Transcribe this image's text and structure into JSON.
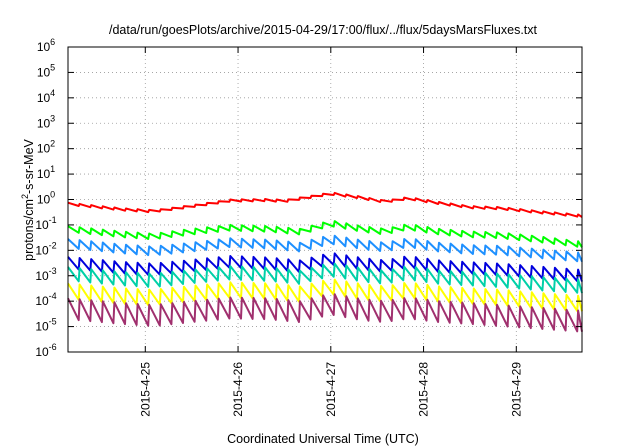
{
  "chart_data": {
    "type": "line",
    "title": "/data/run/goesPlots/archive/2015-04-29/17:00/flux/../flux/5daysMarsFluxes.txt",
    "xlabel": "Coordinated Universal Time (UTC)",
    "ylabel": "protons/cm2-s-sr-MeV",
    "ylabel_parts": {
      "pre": "protons/cm",
      "sup": "2",
      "post": "-s-sr-MeV"
    },
    "y_scale": "log",
    "ylim": [
      1e-06,
      1000000.0
    ],
    "y_ticks": [
      {
        "value": 1e-06,
        "base": "10",
        "exp": "-6"
      },
      {
        "value": 1e-05,
        "base": "10",
        "exp": "-5"
      },
      {
        "value": 0.0001,
        "base": "10",
        "exp": "-4"
      },
      {
        "value": 0.001,
        "base": "10",
        "exp": "-3"
      },
      {
        "value": 0.01,
        "base": "10",
        "exp": "-2"
      },
      {
        "value": 0.1,
        "base": "10",
        "exp": "-1"
      },
      {
        "value": 1.0,
        "base": "10",
        "exp": "0"
      },
      {
        "value": 10.0,
        "base": "10",
        "exp": "1"
      },
      {
        "value": 100.0,
        "base": "10",
        "exp": "2"
      },
      {
        "value": 1000.0,
        "base": "10",
        "exp": "3"
      },
      {
        "value": 10000.0,
        "base": "10",
        "exp": "4"
      },
      {
        "value": 100000.0,
        "base": "10",
        "exp": "5"
      },
      {
        "value": 1000000.0,
        "base": "10",
        "exp": "6"
      }
    ],
    "xlim": [
      "2015-04-24T04:00",
      "2015-04-29T17:00"
    ],
    "x_ticks": [
      "2015-4-25",
      "2015-4-26",
      "2015-4-27",
      "2015-4-28",
      "2015-4-29"
    ],
    "grid": true,
    "sawtooth_period_hours": 3,
    "series": [
      {
        "color": "#ff0000",
        "lo_factor": 0.82,
        "points": [
          [
            "2015-04-24T04:00",
            0.75
          ],
          [
            "2015-04-24T18:00",
            0.45
          ],
          [
            "2015-04-25T02:00",
            0.38
          ],
          [
            "2015-04-25T12:00",
            0.6
          ],
          [
            "2015-04-25T22:00",
            1.0
          ],
          [
            "2015-04-26T08:00",
            1.05
          ],
          [
            "2015-04-26T12:00",
            0.95
          ],
          [
            "2015-04-26T20:00",
            1.5
          ],
          [
            "2015-04-27T00:00",
            1.9
          ],
          [
            "2015-04-27T08:00",
            1.3
          ],
          [
            "2015-04-27T14:00",
            0.9
          ],
          [
            "2015-04-27T20:00",
            1.25
          ],
          [
            "2015-04-28T04:00",
            0.8
          ],
          [
            "2015-04-28T12:00",
            0.55
          ],
          [
            "2015-04-28T20:00",
            0.5
          ],
          [
            "2015-04-29T06:00",
            0.35
          ],
          [
            "2015-04-29T17:00",
            0.25
          ]
        ]
      },
      {
        "color": "#00ff00",
        "lo_factor": 0.6,
        "points": [
          [
            "2015-04-24T04:00",
            0.09
          ],
          [
            "2015-04-24T18:00",
            0.055
          ],
          [
            "2015-04-25T02:00",
            0.045
          ],
          [
            "2015-04-25T12:00",
            0.07
          ],
          [
            "2015-04-25T22:00",
            0.1
          ],
          [
            "2015-04-26T08:00",
            0.09
          ],
          [
            "2015-04-26T16:00",
            0.07
          ],
          [
            "2015-04-27T00:00",
            0.15
          ],
          [
            "2015-04-27T08:00",
            0.09
          ],
          [
            "2015-04-27T14:00",
            0.07
          ],
          [
            "2015-04-27T20:00",
            0.11
          ],
          [
            "2015-04-28T04:00",
            0.07
          ],
          [
            "2015-04-28T12:00",
            0.055
          ],
          [
            "2015-04-28T20:00",
            0.05
          ],
          [
            "2015-04-29T06:00",
            0.035
          ],
          [
            "2015-04-29T17:00",
            0.022
          ]
        ]
      },
      {
        "color": "#1e90ff",
        "lo_factor": 0.45,
        "points": [
          [
            "2015-04-24T04:00",
            0.028
          ],
          [
            "2015-04-24T18:00",
            0.017
          ],
          [
            "2015-04-25T02:00",
            0.014
          ],
          [
            "2015-04-25T12:00",
            0.02
          ],
          [
            "2015-04-25T22:00",
            0.03
          ],
          [
            "2015-04-26T08:00",
            0.026
          ],
          [
            "2015-04-26T16:00",
            0.02
          ],
          [
            "2015-04-27T00:00",
            0.04
          ],
          [
            "2015-04-27T08:00",
            0.025
          ],
          [
            "2015-04-27T14:00",
            0.02
          ],
          [
            "2015-04-27T20:00",
            0.03
          ],
          [
            "2015-04-28T04:00",
            0.02
          ],
          [
            "2015-04-28T12:00",
            0.016
          ],
          [
            "2015-04-28T20:00",
            0.015
          ],
          [
            "2015-04-29T06:00",
            0.011
          ],
          [
            "2015-04-29T17:00",
            0.008
          ]
        ]
      },
      {
        "color": "#0000dd",
        "lo_factor": 0.35,
        "points": [
          [
            "2015-04-24T04:00",
            0.0055
          ],
          [
            "2015-04-24T18:00",
            0.0035
          ],
          [
            "2015-04-25T02:00",
            0.003
          ],
          [
            "2015-04-25T12:00",
            0.0042
          ],
          [
            "2015-04-25T22:00",
            0.006
          ],
          [
            "2015-04-26T08:00",
            0.0052
          ],
          [
            "2015-04-26T16:00",
            0.004
          ],
          [
            "2015-04-27T00:00",
            0.008
          ],
          [
            "2015-04-27T08:00",
            0.005
          ],
          [
            "2015-04-27T14:00",
            0.004
          ],
          [
            "2015-04-27T20:00",
            0.006
          ],
          [
            "2015-04-28T04:00",
            0.004
          ],
          [
            "2015-04-28T12:00",
            0.0034
          ],
          [
            "2015-04-28T20:00",
            0.003
          ],
          [
            "2015-04-29T06:00",
            0.0023
          ],
          [
            "2015-04-29T17:00",
            0.0017
          ]
        ]
      },
      {
        "color": "#00d0a8",
        "lo_factor": 0.3,
        "points": [
          [
            "2015-04-24T04:00",
            0.0022
          ],
          [
            "2015-04-24T18:00",
            0.0014
          ],
          [
            "2015-04-25T02:00",
            0.0012
          ],
          [
            "2015-04-25T12:00",
            0.0017
          ],
          [
            "2015-04-25T22:00",
            0.0024
          ],
          [
            "2015-04-26T08:00",
            0.0021
          ],
          [
            "2015-04-26T16:00",
            0.0016
          ],
          [
            "2015-04-27T00:00",
            0.0032
          ],
          [
            "2015-04-27T08:00",
            0.002
          ],
          [
            "2015-04-27T14:00",
            0.0016
          ],
          [
            "2015-04-27T20:00",
            0.0024
          ],
          [
            "2015-04-28T04:00",
            0.0016
          ],
          [
            "2015-04-28T12:00",
            0.0014
          ],
          [
            "2015-04-28T20:00",
            0.0012
          ],
          [
            "2015-04-29T06:00",
            0.0009
          ],
          [
            "2015-04-29T17:00",
            0.0007
          ]
        ]
      },
      {
        "color": "#ffff00",
        "lo_factor": 0.25,
        "points": [
          [
            "2015-04-24T04:00",
            0.0005
          ],
          [
            "2015-04-24T18:00",
            0.00032
          ],
          [
            "2015-04-25T02:00",
            0.00028
          ],
          [
            "2015-04-25T12:00",
            0.0004
          ],
          [
            "2015-04-25T22:00",
            0.00055
          ],
          [
            "2015-04-26T08:00",
            0.0005
          ],
          [
            "2015-04-26T16:00",
            0.00038
          ],
          [
            "2015-04-27T00:00",
            0.00075
          ],
          [
            "2015-04-27T08:00",
            0.00047
          ],
          [
            "2015-04-27T14:00",
            0.00038
          ],
          [
            "2015-04-27T20:00",
            0.00055
          ],
          [
            "2015-04-28T04:00",
            0.00038
          ],
          [
            "2015-04-28T12:00",
            0.00032
          ],
          [
            "2015-04-28T20:00",
            0.00028
          ],
          [
            "2015-04-29T06:00",
            0.00021
          ],
          [
            "2015-04-29T17:00",
            0.00016
          ]
        ]
      },
      {
        "color": "#a0306e",
        "lo_factor": 0.15,
        "points": [
          [
            "2015-04-24T04:00",
            0.00013
          ],
          [
            "2015-04-24T18:00",
            8.5e-05
          ],
          [
            "2015-04-25T02:00",
            7e-05
          ],
          [
            "2015-04-25T12:00",
            0.0001
          ],
          [
            "2015-04-25T22:00",
            0.00014
          ],
          [
            "2015-04-26T08:00",
            0.00013
          ],
          [
            "2015-04-26T16:00",
            0.0001
          ],
          [
            "2015-04-27T00:00",
            0.0002
          ],
          [
            "2015-04-27T08:00",
            0.00012
          ],
          [
            "2015-04-27T14:00",
            0.0001
          ],
          [
            "2015-04-27T20:00",
            0.00014
          ],
          [
            "2015-04-28T04:00",
            0.0001
          ],
          [
            "2015-04-28T12:00",
            8.5e-05
          ],
          [
            "2015-04-28T20:00",
            7e-05
          ],
          [
            "2015-04-29T06:00",
            5.5e-05
          ],
          [
            "2015-04-29T17:00",
            4.2e-05
          ]
        ]
      }
    ]
  }
}
